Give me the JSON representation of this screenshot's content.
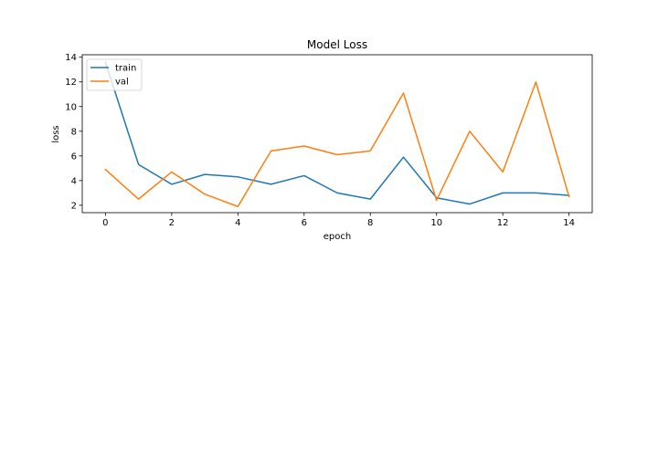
{
  "chart_data": {
    "type": "line",
    "title": "Model Loss",
    "xlabel": "epoch",
    "ylabel": "loss",
    "xlim": [
      -0.7,
      14.7
    ],
    "ylim": [
      1.4,
      14.2
    ],
    "x_ticks": [
      0,
      2,
      4,
      6,
      8,
      10,
      12,
      14
    ],
    "y_ticks": [
      2,
      4,
      6,
      8,
      10,
      12,
      14
    ],
    "grid": false,
    "legend_position": "upper-left",
    "x": [
      0,
      1,
      2,
      3,
      4,
      5,
      6,
      7,
      8,
      9,
      10,
      11,
      12,
      13,
      14
    ],
    "series": [
      {
        "name": "train",
        "color": "#1f77b4",
        "values": [
          13.6,
          5.3,
          3.7,
          4.5,
          4.3,
          3.7,
          4.4,
          3.0,
          2.5,
          5.9,
          2.6,
          2.1,
          3.0,
          3.0,
          2.8
        ]
      },
      {
        "name": "val",
        "color": "#ff7f0e",
        "values": [
          4.9,
          2.5,
          4.7,
          2.9,
          1.9,
          6.4,
          6.8,
          6.1,
          6.4,
          11.1,
          2.4,
          8.0,
          4.7,
          12.0,
          2.7
        ]
      }
    ]
  }
}
